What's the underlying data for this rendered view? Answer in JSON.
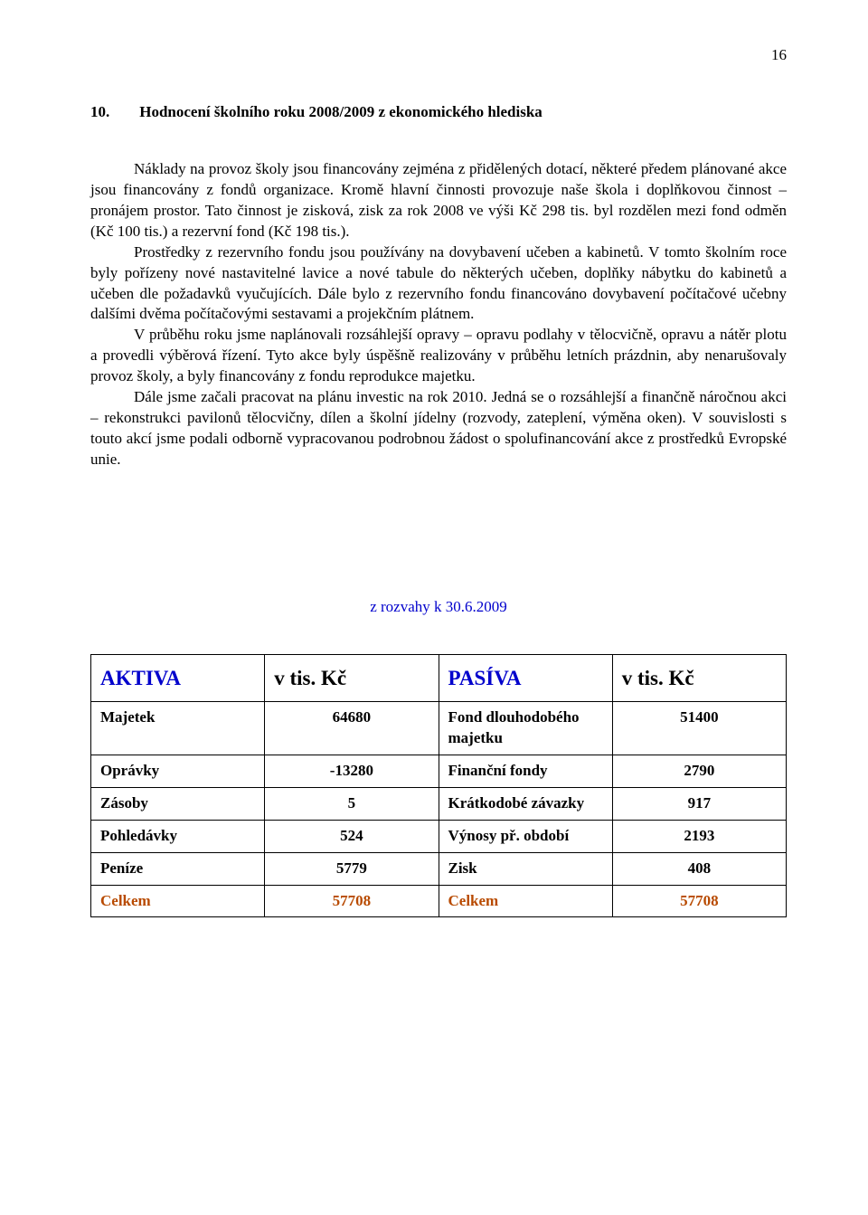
{
  "page_number": "16",
  "heading": {
    "num": "10.",
    "title": "Hodnocení školního roku 2008/2009 z ekonomického hlediska"
  },
  "paragraphs": [
    "Náklady na provoz školy jsou financovány zejména z přidělených dotací, některé předem plánované akce jsou financovány z fondů organizace. Kromě hlavní činnosti provozuje naše škola i doplňkovou činnost – pronájem prostor. Tato činnost je zisková, zisk za rok 2008 ve výši Kč 298 tis. byl rozdělen mezi fond odměn (Kč 100 tis.) a rezervní fond (Kč 198 tis.).",
    "Prostředky z rezervního fondu jsou používány na dovybavení učeben a kabinetů. V tomto školním roce byly pořízeny nové nastavitelné lavice a nové tabule do některých učeben, doplňky nábytku do kabinetů a učeben dle požadavků vyučujících. Dále bylo z rezervního fondu financováno dovybavení počítačové učebny dalšími dvěma počítačovými sestavami a projekčním plátnem.",
    "V průběhu roku jsme naplánovali rozsáhlejší opravy – opravu podlahy v tělocvičně, opravu a nátěr plotu a provedli výběrová řízení. Tyto akce byly úspěšně realizovány v průběhu letních prázdnin, aby nenarušovaly provoz školy, a byly financovány z fondu reprodukce majetku.",
    "Dále jsme začali pracovat na plánu investic na rok 2010. Jedná se o rozsáhlejší a finančně náročnou akci – rekonstrukci pavilonů tělocvičny, dílen a školní jídelny (rozvody, zateplení, výměna oken). V souvislosti s touto akcí jsme podali odborně vypracovanou podrobnou žádost o spolufinancování akce z prostředků Evropské unie."
  ],
  "subtitle": "z rozvahy k 30.6.2009",
  "table": {
    "type": "table",
    "colors": {
      "header_accent": "#0000cc",
      "total_row_accent": "#b84a00",
      "border": "#000000",
      "text": "#000000",
      "background": "#ffffff"
    },
    "font": {
      "body_size_pt": 13,
      "header_size_pt": 17,
      "weight_body": "bold",
      "weight_header": "bold"
    },
    "columns": [
      "AKTIVA",
      "v tis. Kč",
      "PASÍVA",
      "v tis. Kč"
    ],
    "col_widths_pct": [
      25,
      25,
      25,
      25
    ],
    "col_align": [
      "left",
      "center",
      "left",
      "center"
    ],
    "rows": [
      [
        "Majetek",
        "64680",
        "Fond dlouhodobého majetku",
        "51400"
      ],
      [
        "Oprávky",
        "-13280",
        "Finanční fondy",
        "2790"
      ],
      [
        "Zásoby",
        "5",
        "Krátkodobé závazky",
        "917"
      ],
      [
        "Pohledávky",
        "524",
        "Výnosy př. období",
        "2193"
      ],
      [
        "Peníze",
        "5779",
        "Zisk",
        "408"
      ],
      [
        "Celkem",
        "57708",
        "Celkem",
        "57708"
      ]
    ],
    "total_row_index": 5
  }
}
